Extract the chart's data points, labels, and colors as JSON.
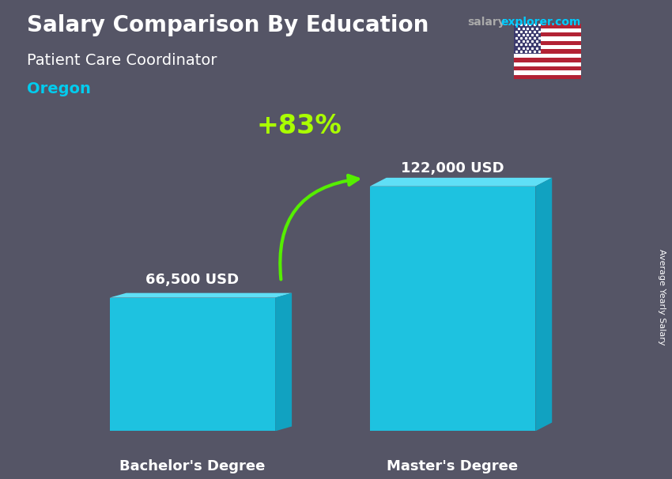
{
  "title_line1": "Salary Comparison By Education",
  "subtitle": "Patient Care Coordinator",
  "location": "Oregon",
  "watermark_salary": "salary",
  "watermark_rest": "explorer.com",
  "ylabel": "Average Yearly Salary",
  "categories": [
    "Bachelor's Degree",
    "Master's Degree"
  ],
  "values": [
    66500,
    122000
  ],
  "value_labels": [
    "66,500 USD",
    "122,000 USD"
  ],
  "bar_face_color": "#18CFEE",
  "bar_top_color": "#60E8FF",
  "bar_side_color": "#0AABCC",
  "pct_label": "+83%",
  "pct_color": "#AAFF00",
  "arrow_color": "#55EE00",
  "title_color": "#FFFFFF",
  "subtitle_color": "#FFFFFF",
  "location_color": "#00CCEE",
  "watermark_salary_color": "#AAAAAA",
  "watermark_rest_color": "#00CCFF",
  "bg_color": "#555566",
  "value_label_color": "#FFFFFF",
  "cat_label_color": "#FFFFFF",
  "bar_width": 0.28,
  "x_positions": [
    0.28,
    0.72
  ],
  "ylim": [
    0,
    148000
  ],
  "xlim": [
    0,
    1
  ]
}
